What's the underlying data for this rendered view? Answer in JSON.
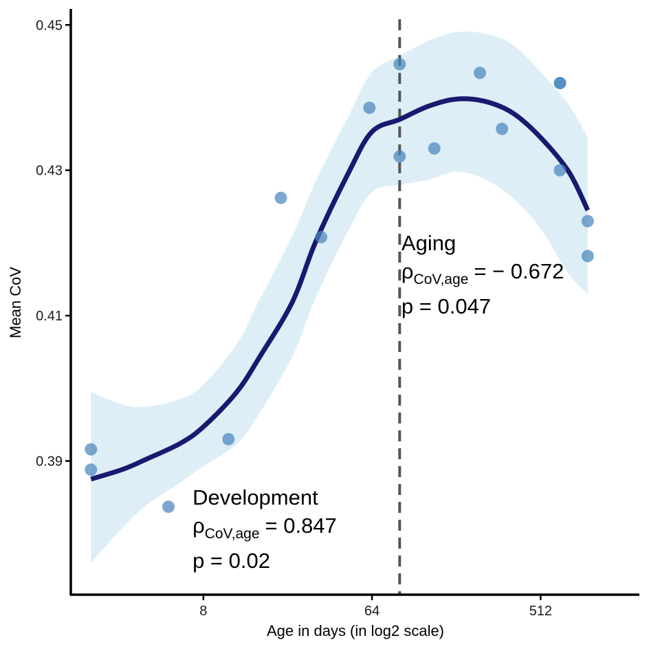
{
  "chart_data": {
    "type": "scatter",
    "xlabel": "Age in days (in log2 scale)",
    "ylabel": "Mean CoV",
    "x_scale": "log2",
    "x_ticks": [
      {
        "value": 8,
        "label": "8"
      },
      {
        "value": 64,
        "label": "64"
      },
      {
        "value": 512,
        "label": "512"
      }
    ],
    "y_ticks": [
      {
        "value": 0.39,
        "label": "0.39"
      },
      {
        "value": 0.41,
        "label": "0.41"
      },
      {
        "value": 0.43,
        "label": "0.43"
      },
      {
        "value": 0.45,
        "label": "0.45"
      }
    ],
    "xlim": [
      1.56,
      1730
    ],
    "ylim": [
      0.3716,
      0.4522
    ],
    "grid": false,
    "colors": {
      "points": "#4a86bd",
      "smooth_line": "#191970",
      "confidence_band": "#ddeef6",
      "divider_line": "#555555"
    },
    "points": [
      {
        "x": 2,
        "y": 0.3916
      },
      {
        "x": 2,
        "y": 0.3888
      },
      {
        "x": 5.2,
        "y": 0.3837
      },
      {
        "x": 10.9,
        "y": 0.393
      },
      {
        "x": 20.8,
        "y": 0.4262
      },
      {
        "x": 34.2,
        "y": 0.4208
      },
      {
        "x": 62,
        "y": 0.4386
      },
      {
        "x": 90,
        "y": 0.4446
      },
      {
        "x": 90,
        "y": 0.4319
      },
      {
        "x": 138,
        "y": 0.433
      },
      {
        "x": 242,
        "y": 0.4434
      },
      {
        "x": 318,
        "y": 0.4357
      },
      {
        "x": 650,
        "y": 0.442
      },
      {
        "x": 650,
        "y": 0.442
      },
      {
        "x": 650,
        "y": 0.43
      },
      {
        "x": 915,
        "y": 0.423
      },
      {
        "x": 915,
        "y": 0.4182
      }
    ],
    "smooth": {
      "x": [
        2,
        3,
        4,
        6,
        8,
        12,
        16,
        24,
        32,
        48,
        64,
        90,
        128,
        181,
        256,
        362,
        512,
        724,
        915
      ],
      "y": [
        0.3875,
        0.3889,
        0.3903,
        0.3924,
        0.3947,
        0.3994,
        0.4043,
        0.4119,
        0.4202,
        0.4297,
        0.4353,
        0.437,
        0.4388,
        0.4398,
        0.4395,
        0.4379,
        0.4345,
        0.4298,
        0.4245
      ],
      "lower": [
        0.376,
        0.381,
        0.384,
        0.387,
        0.3893,
        0.3923,
        0.3966,
        0.4044,
        0.4125,
        0.4218,
        0.427,
        0.428,
        0.4287,
        0.4298,
        0.4288,
        0.4262,
        0.422,
        0.4157,
        0.413
      ],
      "upper": [
        0.3995,
        0.3977,
        0.3975,
        0.3985,
        0.4005,
        0.406,
        0.4122,
        0.421,
        0.4285,
        0.4375,
        0.4435,
        0.4457,
        0.4478,
        0.449,
        0.4488,
        0.4473,
        0.4435,
        0.439,
        0.4345
      ]
    },
    "divider_x": 90,
    "annotations": [
      {
        "title": "Development",
        "rho_symbol": "ρ",
        "rho_subscript": "CoV,age",
        "rho_value": "= 0.847",
        "p_value": "p = 0.02",
        "x": 7,
        "y": 0.384
      },
      {
        "title": "Aging",
        "rho_symbol": "ρ",
        "rho_subscript": "CoV,age",
        "rho_value": "= − 0.672",
        "p_value": "p = 0.047",
        "x": 92,
        "y": 0.419
      }
    ]
  }
}
